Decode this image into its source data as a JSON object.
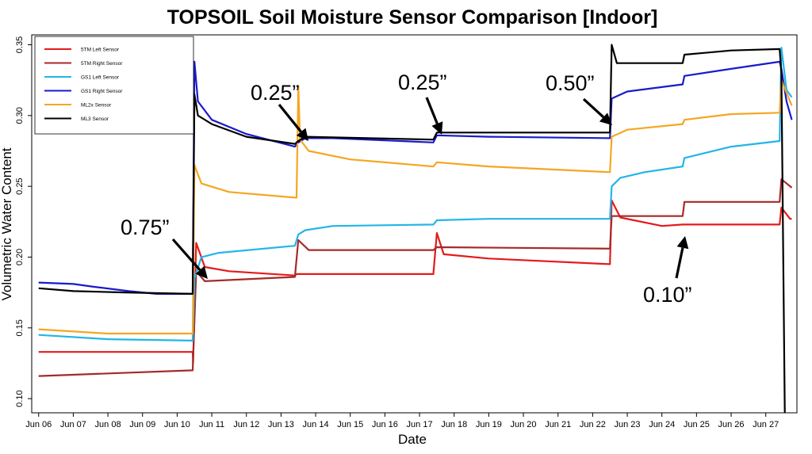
{
  "chart_data": {
    "type": "line",
    "title": "TOPSOIL Soil Moisture Sensor Comparison [Indoor]",
    "xlabel": "Date",
    "ylabel": "Volumetric Water Content",
    "xlim": [
      5.8,
      27.9
    ],
    "ylim": [
      0.09,
      0.357
    ],
    "x_ticks": [
      6,
      7,
      8,
      9,
      10,
      11,
      12,
      13,
      14,
      15,
      16,
      17,
      18,
      19,
      20,
      21,
      22,
      23,
      24,
      25,
      26,
      27
    ],
    "x_tick_labels": [
      "Jun 06",
      "Jun 07",
      "Jun 08",
      "Jun 09",
      "Jun 10",
      "Jun 11",
      "Jun 12",
      "Jun 13",
      "Jun 14",
      "Jun 15",
      "Jun 16",
      "Jun 17",
      "Jun 18",
      "Jun 19",
      "Jun 20",
      "Jun 21",
      "Jun 22",
      "Jun 23",
      "Jun 24",
      "Jun 25",
      "Jun 26",
      "Jun 27"
    ],
    "y_ticks": [
      0.1,
      0.15,
      0.2,
      0.25,
      0.3,
      0.35
    ],
    "y_tick_labels": [
      "0.10",
      "0.15",
      "0.20",
      "0.25",
      "0.30",
      "0.35"
    ],
    "grid": false,
    "legend_position": "top-left",
    "series": [
      {
        "name": "5TM Left Sensor",
        "color": "#e41a1c",
        "points": [
          [
            6.0,
            0.133
          ],
          [
            10.45,
            0.133
          ],
          [
            10.46,
            0.125
          ],
          [
            10.55,
            0.21
          ],
          [
            10.8,
            0.193
          ],
          [
            11.5,
            0.19
          ],
          [
            13.4,
            0.187
          ],
          [
            13.45,
            0.188
          ],
          [
            17.4,
            0.188
          ],
          [
            17.5,
            0.217
          ],
          [
            17.7,
            0.202
          ],
          [
            19,
            0.199
          ],
          [
            22.5,
            0.195
          ],
          [
            22.55,
            0.24
          ],
          [
            22.8,
            0.228
          ],
          [
            24,
            0.222
          ],
          [
            24.6,
            0.223
          ],
          [
            27.4,
            0.223
          ],
          [
            27.45,
            0.235
          ],
          [
            27.7,
            0.227
          ],
          [
            27.75,
            0.227
          ]
        ]
      },
      {
        "name": "5TM Right Sensor",
        "color": "#a52a2a",
        "points": [
          [
            6.0,
            0.116
          ],
          [
            10.45,
            0.12
          ],
          [
            10.55,
            0.19
          ],
          [
            10.8,
            0.183
          ],
          [
            13.4,
            0.186
          ],
          [
            13.5,
            0.212
          ],
          [
            13.8,
            0.205
          ],
          [
            17.4,
            0.205
          ],
          [
            17.5,
            0.207
          ],
          [
            22.5,
            0.206
          ],
          [
            22.55,
            0.229
          ],
          [
            24.6,
            0.229
          ],
          [
            24.65,
            0.239
          ],
          [
            27.4,
            0.239
          ],
          [
            27.45,
            0.255
          ],
          [
            27.75,
            0.249
          ]
        ]
      },
      {
        "name": "GS1 Left Sensor",
        "color": "#22b5e8",
        "points": [
          [
            6.0,
            0.145
          ],
          [
            8,
            0.142
          ],
          [
            10.45,
            0.141
          ],
          [
            10.5,
            0.185
          ],
          [
            10.7,
            0.2
          ],
          [
            11.2,
            0.203
          ],
          [
            13.4,
            0.208
          ],
          [
            13.5,
            0.216
          ],
          [
            13.7,
            0.219
          ],
          [
            14.5,
            0.222
          ],
          [
            17.4,
            0.223
          ],
          [
            17.5,
            0.226
          ],
          [
            19,
            0.227
          ],
          [
            22.5,
            0.227
          ],
          [
            22.55,
            0.25
          ],
          [
            22.8,
            0.256
          ],
          [
            23.5,
            0.26
          ],
          [
            24.6,
            0.264
          ],
          [
            24.65,
            0.27
          ],
          [
            26,
            0.278
          ],
          [
            27.4,
            0.282
          ],
          [
            27.45,
            0.348
          ],
          [
            27.6,
            0.318
          ],
          [
            27.75,
            0.313
          ]
        ]
      },
      {
        "name": "GS1 Right Sensor",
        "color": "#1a1acc",
        "points": [
          [
            6.0,
            0.182
          ],
          [
            7,
            0.181
          ],
          [
            7.6,
            0.179
          ],
          [
            8.6,
            0.176
          ],
          [
            9.4,
            0.174
          ],
          [
            10.45,
            0.174
          ],
          [
            10.5,
            0.338
          ],
          [
            10.6,
            0.31
          ],
          [
            11.0,
            0.297
          ],
          [
            12,
            0.287
          ],
          [
            13.4,
            0.278
          ],
          [
            13.5,
            0.281
          ],
          [
            13.7,
            0.284
          ],
          [
            14.5,
            0.284
          ],
          [
            17.4,
            0.281
          ],
          [
            17.5,
            0.286
          ],
          [
            19,
            0.285
          ],
          [
            22.5,
            0.284
          ],
          [
            22.55,
            0.312
          ],
          [
            23,
            0.317
          ],
          [
            24.6,
            0.322
          ],
          [
            24.65,
            0.328
          ],
          [
            26,
            0.333
          ],
          [
            27.4,
            0.338
          ],
          [
            27.45,
            0.333
          ],
          [
            27.6,
            0.31
          ],
          [
            27.75,
            0.297
          ]
        ]
      },
      {
        "name": "ML2x Sensor",
        "color": "#f5a623",
        "points": [
          [
            6.0,
            0.149
          ],
          [
            8,
            0.146
          ],
          [
            10.45,
            0.146
          ],
          [
            10.5,
            0.265
          ],
          [
            10.7,
            0.252
          ],
          [
            11.5,
            0.246
          ],
          [
            13.4,
            0.242
          ],
          [
            13.45,
            0.242
          ],
          [
            13.5,
            0.321
          ],
          [
            13.55,
            0.283
          ],
          [
            13.8,
            0.275
          ],
          [
            15,
            0.269
          ],
          [
            17.4,
            0.264
          ],
          [
            17.5,
            0.267
          ],
          [
            19,
            0.264
          ],
          [
            22.5,
            0.26
          ],
          [
            22.55,
            0.285
          ],
          [
            23,
            0.29
          ],
          [
            24.6,
            0.294
          ],
          [
            24.65,
            0.297
          ],
          [
            26,
            0.301
          ],
          [
            27.4,
            0.302
          ],
          [
            27.45,
            0.325
          ],
          [
            27.75,
            0.307
          ]
        ]
      },
      {
        "name": "ML3 Sensor",
        "color": "#000000",
        "points": [
          [
            6.0,
            0.178
          ],
          [
            7,
            0.176
          ],
          [
            8.5,
            0.175
          ],
          [
            10.45,
            0.174
          ],
          [
            10.5,
            0.315
          ],
          [
            10.6,
            0.3
          ],
          [
            11.0,
            0.294
          ],
          [
            12,
            0.285
          ],
          [
            13.4,
            0.28
          ],
          [
            13.5,
            0.282
          ],
          [
            13.7,
            0.285
          ],
          [
            17.4,
            0.283
          ],
          [
            17.5,
            0.288
          ],
          [
            22.5,
            0.288
          ],
          [
            22.55,
            0.35
          ],
          [
            22.7,
            0.337
          ],
          [
            24.6,
            0.337
          ],
          [
            24.65,
            0.343
          ],
          [
            26,
            0.346
          ],
          [
            27.4,
            0.347
          ],
          [
            27.45,
            0.33
          ],
          [
            27.55,
            0.09
          ]
        ]
      }
    ],
    "annotations": [
      {
        "text": "0.75”",
        "color": "#000000"
      },
      {
        "text": "0.25”",
        "color": "#000000"
      },
      {
        "text": "0.25”",
        "color": "#000000"
      },
      {
        "text": "0.50”",
        "color": "#000000"
      },
      {
        "text": "0.10”",
        "color": "#000000"
      }
    ]
  }
}
